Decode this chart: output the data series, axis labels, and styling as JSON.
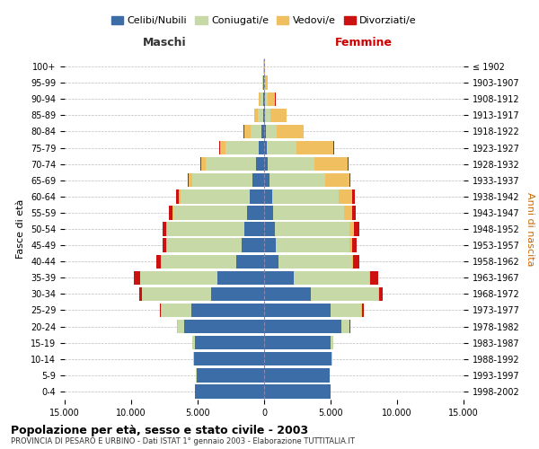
{
  "age_groups": [
    "0-4",
    "5-9",
    "10-14",
    "15-19",
    "20-24",
    "25-29",
    "30-34",
    "35-39",
    "40-44",
    "45-49",
    "50-54",
    "55-59",
    "60-64",
    "65-69",
    "70-74",
    "75-79",
    "80-84",
    "85-89",
    "90-94",
    "95-99",
    "100+"
  ],
  "birth_years": [
    "1998-2002",
    "1993-1997",
    "1988-1992",
    "1983-1987",
    "1978-1982",
    "1973-1977",
    "1968-1972",
    "1963-1967",
    "1958-1962",
    "1953-1957",
    "1948-1952",
    "1943-1947",
    "1938-1942",
    "1933-1937",
    "1928-1932",
    "1923-1927",
    "1918-1922",
    "1913-1917",
    "1908-1912",
    "1903-1907",
    "≤ 1902"
  ],
  "maschi_celibi": [
    5200,
    5100,
    5300,
    5200,
    6000,
    5500,
    4000,
    3500,
    2100,
    1700,
    1500,
    1300,
    1100,
    900,
    600,
    400,
    200,
    100,
    80,
    50,
    20
  ],
  "maschi_coniugati": [
    10,
    20,
    50,
    200,
    500,
    2200,
    5200,
    5800,
    5600,
    5600,
    5800,
    5500,
    5200,
    4500,
    3800,
    2500,
    800,
    400,
    200,
    80,
    30
  ],
  "maschi_vedovi": [
    5,
    5,
    5,
    10,
    30,
    50,
    20,
    30,
    40,
    60,
    80,
    100,
    150,
    250,
    350,
    400,
    500,
    250,
    100,
    20,
    5
  ],
  "maschi_divorziati": [
    2,
    5,
    5,
    10,
    30,
    80,
    200,
    450,
    350,
    250,
    280,
    250,
    200,
    120,
    80,
    50,
    30,
    20,
    10,
    5,
    2
  ],
  "femmine_celibi": [
    5000,
    4900,
    5100,
    5000,
    5800,
    5000,
    3500,
    2200,
    1100,
    900,
    800,
    700,
    600,
    400,
    300,
    200,
    150,
    80,
    60,
    30,
    10
  ],
  "femmine_coniugati": [
    10,
    20,
    50,
    200,
    600,
    2300,
    5100,
    5700,
    5500,
    5500,
    5600,
    5300,
    5000,
    4200,
    3500,
    2200,
    800,
    400,
    180,
    60,
    20
  ],
  "femmine_vedovi": [
    5,
    5,
    10,
    20,
    50,
    80,
    50,
    80,
    100,
    200,
    350,
    600,
    1000,
    1800,
    2500,
    2800,
    2000,
    1200,
    600,
    150,
    20
  ],
  "femmine_divorziati": [
    2,
    5,
    5,
    15,
    40,
    100,
    250,
    600,
    450,
    350,
    400,
    280,
    200,
    120,
    80,
    50,
    30,
    20,
    10,
    5,
    1
  ],
  "colors": {
    "celibi": "#3d6da6",
    "coniugati": "#c8d9a8",
    "vedovi": "#f0c060",
    "divorziati": "#cc1111"
  },
  "xlim": 15000,
  "title_main": "Popolazione per età, sesso e stato civile - 2003",
  "title_sub": "PROVINCIA DI PESARO E URBINO - Dati ISTAT 1° gennaio 2003 - Elaborazione TUTTITALIA.IT",
  "ylabel_left": "Fasce di età",
  "ylabel_right": "Anni di nascita",
  "label_maschi": "Maschi",
  "label_femmine": "Femmine",
  "legend_labels": [
    "Celibi/Nubili",
    "Coniugati/e",
    "Vedovi/e",
    "Divorziati/e"
  ],
  "background_color": "#ffffff",
  "grid_color": "#bbbbbb"
}
